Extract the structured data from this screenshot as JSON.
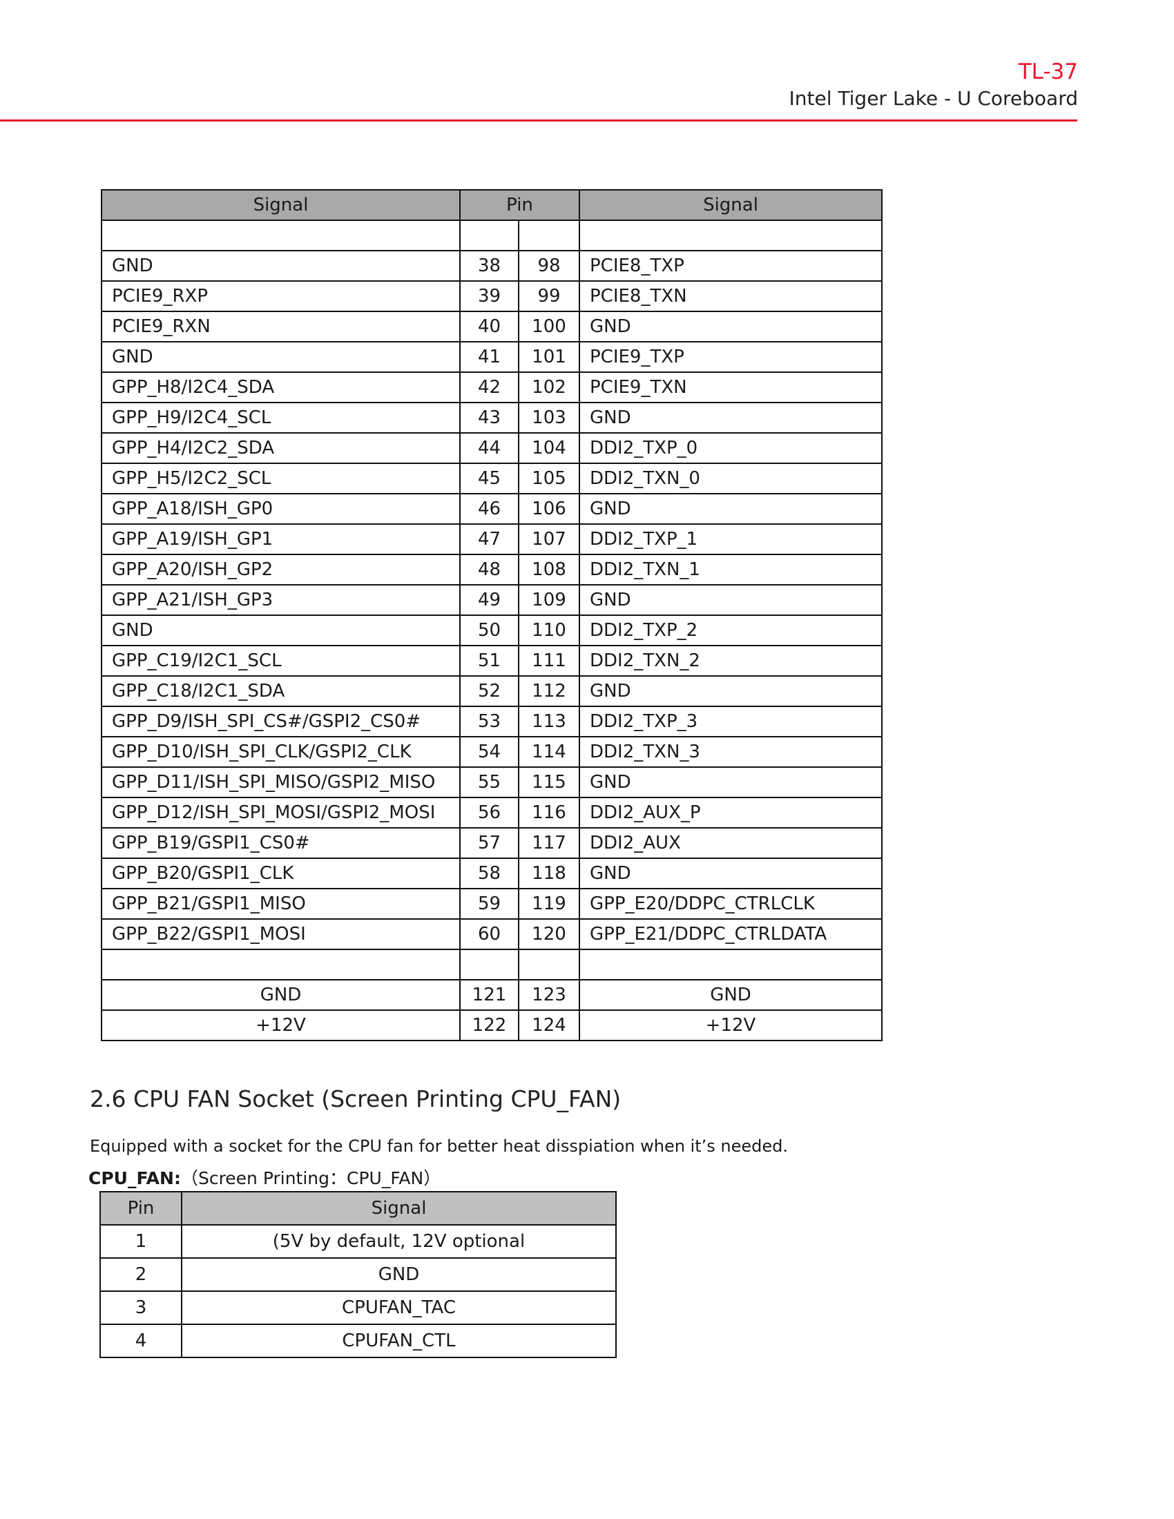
{
  "header": {
    "code": "TL-37",
    "subtitle": "Intel Tiger Lake - U Coreboard",
    "accent": "#e8142d"
  },
  "pin_table": {
    "headers": [
      "Signal",
      "Pin",
      "Signal"
    ],
    "rows": [
      [
        "GND",
        "38",
        "98",
        "PCIE8_TXP"
      ],
      [
        "PCIE9_RXP",
        "39",
        "99",
        "PCIE8_TXN"
      ],
      [
        "PCIE9_RXN",
        "40",
        "100",
        "GND"
      ],
      [
        "GND",
        "41",
        "101",
        "PCIE9_TXP"
      ],
      [
        "GPP_H8/I2C4_SDA",
        "42",
        "102",
        "PCIE9_TXN"
      ],
      [
        "GPP_H9/I2C4_SCL",
        "43",
        "103",
        "GND"
      ],
      [
        "GPP_H4/I2C2_SDA",
        "44",
        "104",
        "DDI2_TXP_0"
      ],
      [
        "GPP_H5/I2C2_SCL",
        "45",
        "105",
        "DDI2_TXN_0"
      ],
      [
        "GPP_A18/ISH_GP0",
        "46",
        "106",
        "GND"
      ],
      [
        "GPP_A19/ISH_GP1",
        "47",
        "107",
        "DDI2_TXP_1"
      ],
      [
        "GPP_A20/ISH_GP2",
        "48",
        "108",
        "DDI2_TXN_1"
      ],
      [
        "GPP_A21/ISH_GP3",
        "49",
        "109",
        "GND"
      ],
      [
        "GND",
        "50",
        "110",
        "DDI2_TXP_2"
      ],
      [
        "GPP_C19/I2C1_SCL",
        "51",
        "111",
        "DDI2_TXN_2"
      ],
      [
        "GPP_C18/I2C1_SDA",
        "52",
        "112",
        "GND"
      ],
      [
        "GPP_D9/ISH_SPI_CS#/GSPI2_CS0#",
        "53",
        "113",
        "DDI2_TXP_3"
      ],
      [
        "GPP_D10/ISH_SPI_CLK/GSPI2_CLK",
        "54",
        "114",
        "DDI2_TXN_3"
      ],
      [
        "GPP_D11/ISH_SPI_MISO/GSPI2_MISO",
        "55",
        "115",
        "GND"
      ],
      [
        "GPP_D12/ISH_SPI_MOSI/GSPI2_MOSI",
        "56",
        "116",
        "DDI2_AUX_P"
      ],
      [
        "GPP_B19/GSPI1_CS0#",
        "57",
        "117",
        "DDI2_AUX"
      ],
      [
        "GPP_B20/GSPI1_CLK",
        "58",
        "118",
        "GND"
      ],
      [
        "GPP_B21/GSPI1_MISO",
        "59",
        "119",
        "GPP_E20/DDPC_CTRLCLK"
      ],
      [
        "GPP_B22/GSPI1_MOSI",
        "60",
        "120",
        "GPP_E21/DDPC_CTRLDATA"
      ]
    ],
    "power_rows": [
      [
        "GND",
        "121",
        "123",
        "GND"
      ],
      [
        "+12V",
        "122",
        "124",
        "+12V"
      ]
    ]
  },
  "section": {
    "title": "2.6 CPU FAN Socket (Screen Printing CPU_FAN)",
    "description": "Equipped with a socket for the CPU fan for better heat disspiation when it’s needed.",
    "label_bold": "CPU_FAN:",
    "label_rest": "（Screen Printing：CPU_FAN）"
  },
  "fan_table": {
    "headers": [
      "Pin",
      "Signal"
    ],
    "rows": [
      [
        "1",
        "(5V by default, 12V optional"
      ],
      [
        "2",
        "GND"
      ],
      [
        "3",
        "CPUFAN_TAC"
      ],
      [
        "4",
        "CPUFAN_CTL"
      ]
    ]
  }
}
